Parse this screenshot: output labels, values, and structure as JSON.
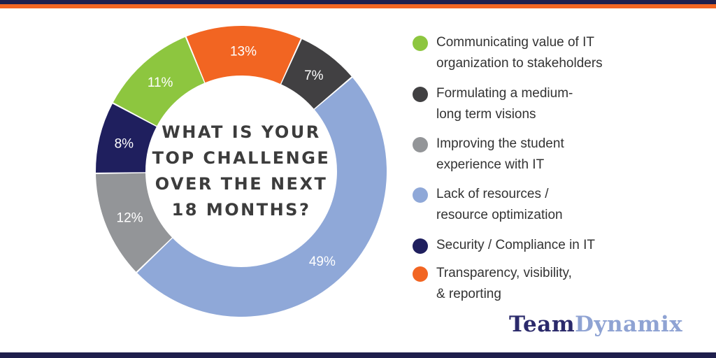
{
  "chart_data": {
    "type": "pie",
    "donut": true,
    "title_lines": [
      "WHAT IS YOUR",
      "TOP CHALLENGE",
      "OVER THE NEXT",
      "18 MONTHS?"
    ],
    "slices": [
      {
        "label_lines": [
          "Communicating value of IT",
          "organization to stakeholders"
        ],
        "value": 11,
        "value_label": "11%",
        "color": "#8dc63f"
      },
      {
        "label_lines": [
          "Transparency, visibility,",
          "& reporting"
        ],
        "value": 13,
        "value_label": "13%",
        "color": "#f26522"
      },
      {
        "label_lines": [
          "Formulating a medium-",
          "long term visions"
        ],
        "value": 7,
        "value_label": "7%",
        "color": "#414042"
      },
      {
        "label_lines": [
          "Lack of resources /",
          "resource optimization"
        ],
        "value": 49,
        "value_label": "49%",
        "color": "#8fa8d8"
      },
      {
        "label_lines": [
          "Improving the student",
          "experience with IT"
        ],
        "value": 12,
        "value_label": "12%",
        "color": "#939598"
      },
      {
        "label_lines": [
          "Security / Compliance in IT"
        ],
        "value": 8,
        "value_label": "8%",
        "color": "#1f1f5e"
      }
    ],
    "legend_order": [
      0,
      2,
      4,
      3,
      5,
      1
    ],
    "legend_position": "right"
  },
  "brand": {
    "team": "Team",
    "dynamix": "Dynamix"
  },
  "colors": {
    "navy_bar": "#1f1f4d",
    "orange_bar": "#f26522"
  }
}
